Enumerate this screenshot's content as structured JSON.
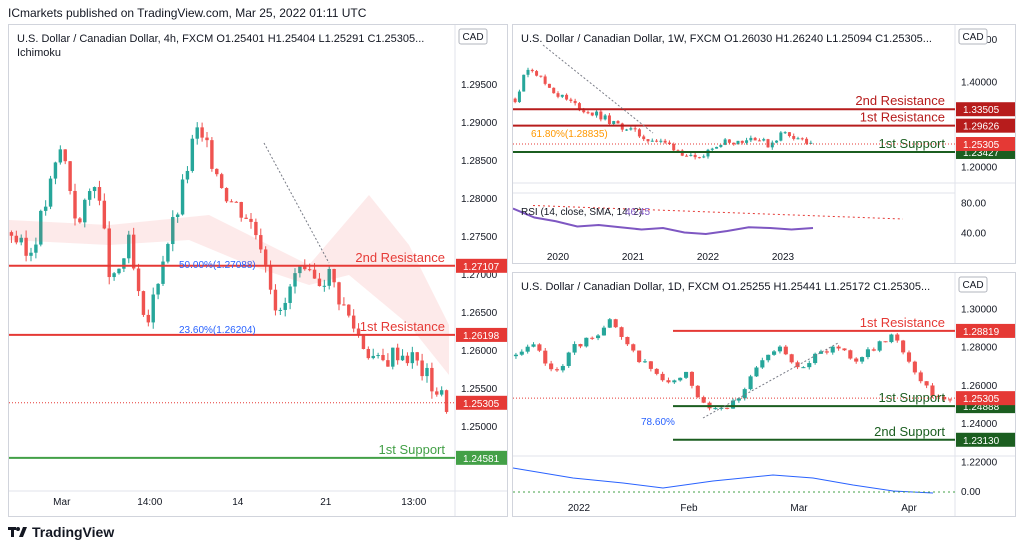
{
  "header": {
    "published": "ICmarkets published on TradingView.com, Mar 25, 2022 01:11 UTC"
  },
  "footer": {
    "brand": "TradingView"
  },
  "colors": {
    "up": "#26a69a",
    "down": "#ef5350",
    "resistance": "#e53935",
    "resistance_dark": "#b71c1c",
    "support": "#43a047",
    "support_dark": "#1b5e20",
    "price": "#e53935",
    "rsi": "#7e57c2",
    "fib": "#2962ff",
    "fib_orange": "#ff9800"
  },
  "chart_data": [
    {
      "id": "usdcad_4h",
      "type": "candlestick",
      "title": "U.S. Dollar / Canadian Dollar, 4h, FXCM",
      "ohlc_label": {
        "o": "O1.25401",
        "h": "H1.25404",
        "l": "L1.25291",
        "c": "C1.25305..."
      },
      "indicator": "Ichimoku",
      "currency": "CAD",
      "ylim": [
        1.2425,
        1.2988
      ],
      "yticks": [
        "1.29500",
        "1.29000",
        "1.28500",
        "1.28000",
        "1.27500",
        "1.27000",
        "1.26500",
        "1.26000",
        "1.25500",
        "1.25000"
      ],
      "xticks": [
        "Mar",
        "14:00",
        "14",
        "21",
        "13:00"
      ],
      "close_path": [
        1.2755,
        1.272,
        1.279,
        1.287,
        1.276,
        1.283,
        1.268,
        1.274,
        1.262,
        1.272,
        1.279,
        1.289,
        1.285,
        1.28,
        1.278,
        1.274,
        1.264,
        1.27,
        1.269,
        1.27,
        1.265,
        1.261,
        1.258,
        1.26,
        1.259,
        1.256,
        1.253
      ],
      "levels": [
        {
          "name": "2nd Resistance",
          "value": "1.27107",
          "color": "#e53935"
        },
        {
          "name": "1st Resistance",
          "value": "1.26198",
          "color": "#e53935"
        },
        {
          "name": "1st Support",
          "value": "1.24581",
          "color": "#43a047"
        }
      ],
      "current_price": "1.25305",
      "fib_labels": [
        "50.00%(1.27088)",
        "23.60%(1.26204)"
      ]
    },
    {
      "id": "usdcad_1w",
      "type": "candlestick",
      "title": "U.S. Dollar / Canadian Dollar, 1W, FXCM",
      "ohlc_label": {
        "o": "O1.26030",
        "h": "H1.26240",
        "l": "L1.25094",
        "c": "C1.25305..."
      },
      "currency": "CAD",
      "ylim": [
        1.18,
        1.51
      ],
      "yticks": [
        "1.50000",
        "1.40000",
        "1.20000"
      ],
      "xticks": [
        "2020",
        "2021",
        "2022",
        "2023"
      ],
      "close_path": [
        1.36,
        1.44,
        1.4,
        1.37,
        1.35,
        1.33,
        1.32,
        1.3,
        1.29,
        1.27,
        1.26,
        1.25,
        1.23,
        1.21,
        1.25,
        1.26,
        1.26,
        1.27,
        1.25,
        1.28,
        1.27,
        1.25
      ],
      "levels": [
        {
          "name": "2nd Resistance",
          "value": "1.33505",
          "color": "#b71c1c"
        },
        {
          "name": "1st Resistance",
          "value": "1.29626",
          "color": "#b71c1c"
        },
        {
          "name": "1st Support",
          "value": "1.23427",
          "color": "#1b5e20"
        }
      ],
      "current_price": "1.25305",
      "fib_labels": [
        "61.80%(1.28835)"
      ],
      "rsi": {
        "label": "RSI (14, close, SMA, 14, 2)",
        "value": "46.45",
        "yticks": [
          "80.00",
          "40.00"
        ],
        "series": [
          72,
          60,
          55,
          48,
          50,
          47,
          44,
          46,
          40,
          38,
          42,
          47,
          46,
          44,
          46
        ]
      }
    },
    {
      "id": "usdcad_1d",
      "type": "candlestick",
      "title": "U.S. Dollar / Canadian Dollar, 1D, FXCM",
      "ohlc_label": {
        "o": "O1.25255",
        "h": "H1.25441",
        "l": "L1.25172",
        "c": "C1.25305..."
      },
      "currency": "CAD",
      "ylim": [
        1.227,
        1.308
      ],
      "yticks": [
        "1.30000",
        "1.28000",
        "1.26000",
        "1.24000",
        "1.22000"
      ],
      "xticks": [
        "2022",
        "Feb",
        "Mar",
        "Apr"
      ],
      "close_path": [
        1.275,
        1.28,
        1.265,
        1.279,
        1.285,
        1.293,
        1.278,
        1.27,
        1.26,
        1.265,
        1.25,
        1.248,
        1.256,
        1.272,
        1.279,
        1.27,
        1.275,
        1.281,
        1.273,
        1.279,
        1.287,
        1.27,
        1.255,
        1.253
      ],
      "levels": [
        {
          "name": "1st Resistance",
          "value": "1.28819",
          "color": "#e53935"
        },
        {
          "name": "1st Support",
          "value": "1.24888",
          "color": "#1b5e20"
        },
        {
          "name": "2nd Support",
          "value": "1.23130",
          "color": "#1b5e20"
        }
      ],
      "current_price": "1.25305",
      "fib_labels": [
        "78.60%"
      ],
      "osc": {
        "ytick": "0.00"
      }
    }
  ]
}
